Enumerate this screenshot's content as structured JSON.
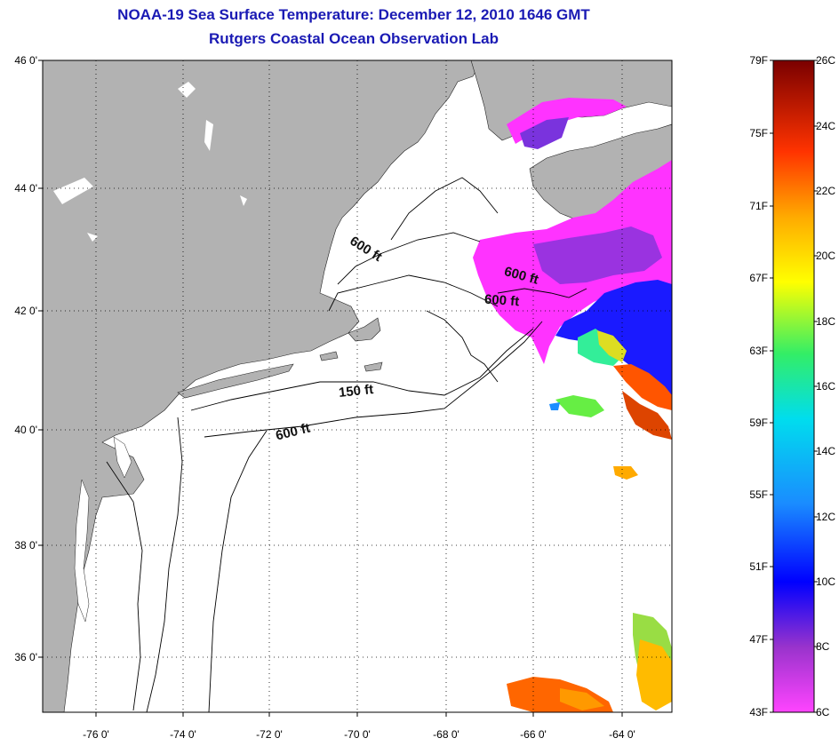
{
  "title": {
    "line1": "NOAA-19 Sea Surface Temperature:  December 12, 2010 1646 GMT",
    "line2": "Rutgers Coastal Ocean Observation Lab"
  },
  "axes": {
    "lat_labels": [
      "46 0'",
      "44 0'",
      "42 0'",
      "40 0'",
      "38 0'",
      "36 0'"
    ],
    "lon_labels": [
      "-76 0'",
      "-74 0'",
      "-72 0'",
      "-70 0'",
      "-68 0'",
      "-66 0'",
      "-64 0'"
    ]
  },
  "contour_labels": {
    "gulf_600_a": "600 ft",
    "gulf_600_b": "600 ft",
    "gulf_600_c": "600 ft",
    "shelf_150": "150 ft",
    "shelf_600": "600 ft"
  },
  "colorbar": {
    "fahrenheit": [
      "79F",
      "75F",
      "71F",
      "67F",
      "63F",
      "59F",
      "55F",
      "51F",
      "47F",
      "43F"
    ],
    "celsius": [
      "26C",
      "24C",
      "22C",
      "20C",
      "18C",
      "16C",
      "14C",
      "12C",
      "10C",
      "8C",
      "6C"
    ]
  },
  "colors": {
    "land": "#b2b2b2",
    "ocean": "#ffffff",
    "title": "#1a1ab4",
    "warm_max": "#7a0000",
    "cold_min": "#ff44ff"
  }
}
